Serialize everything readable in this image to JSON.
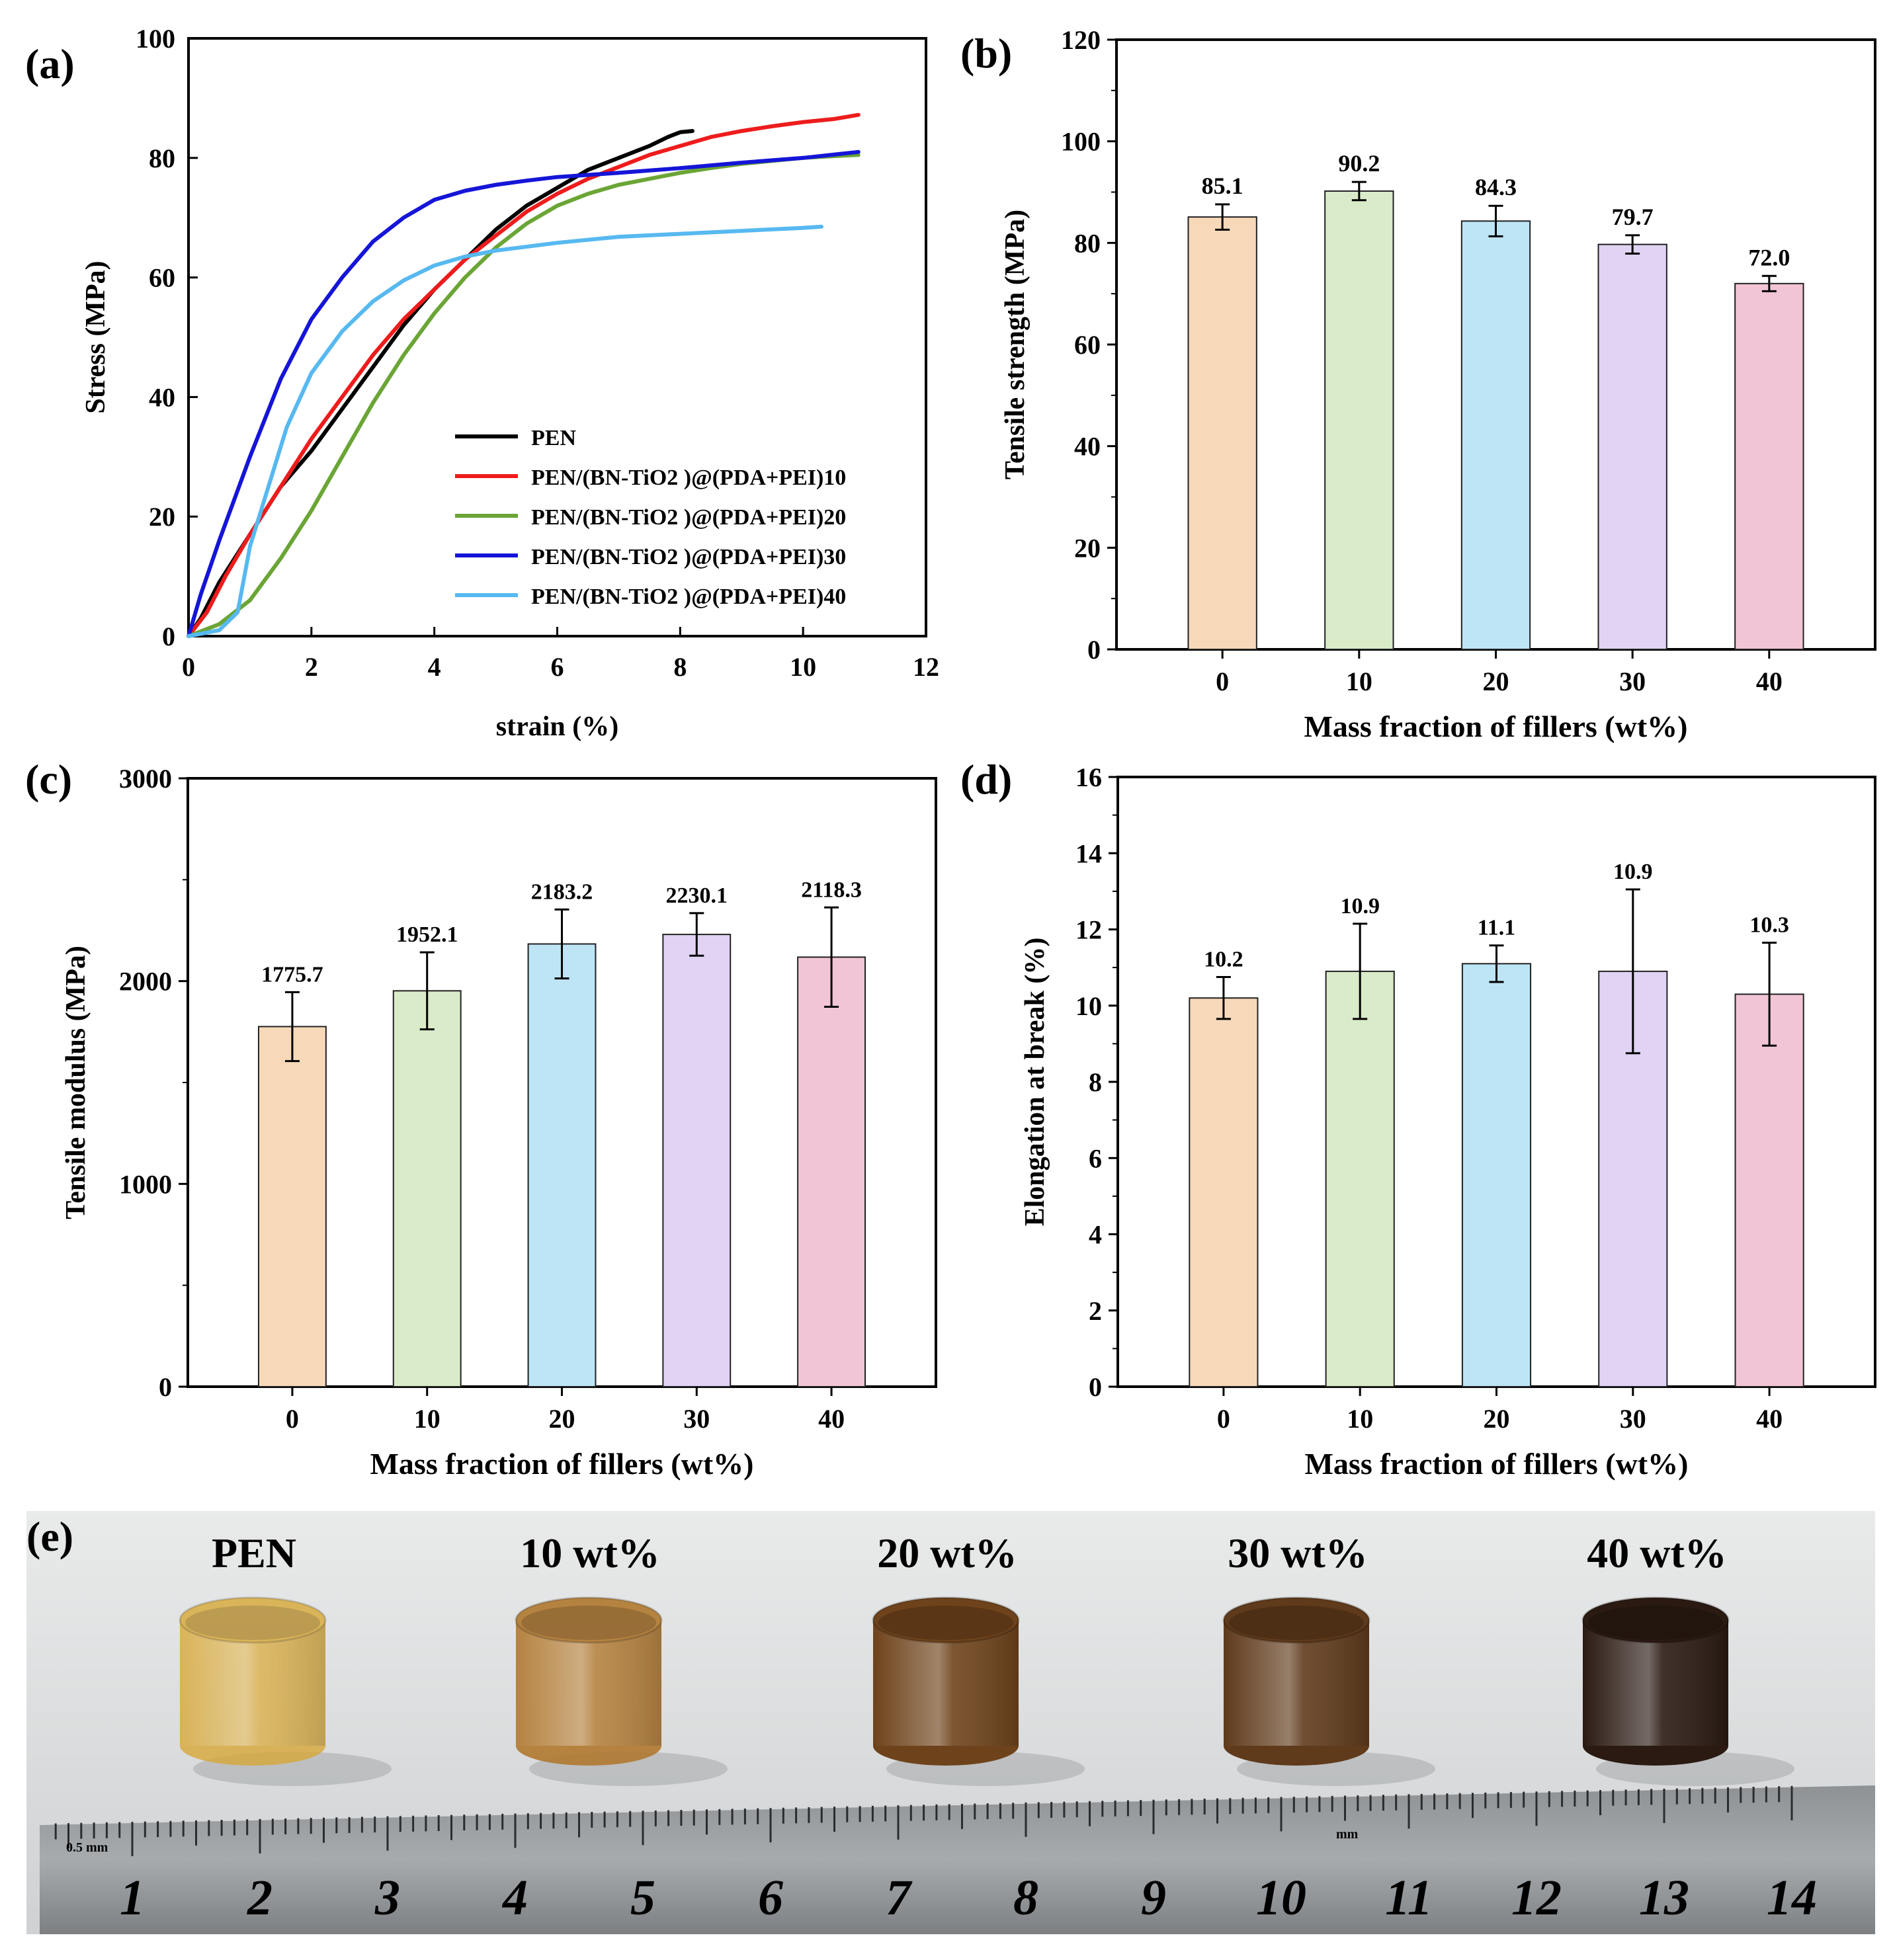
{
  "figure": {
    "panels": [
      "(a)",
      "(b)",
      "(c)",
      "(d)",
      "(e)"
    ],
    "category_axis_label": "Mass fraction of  fillers (wt%)"
  },
  "chart_data": [
    {
      "id": "a",
      "type": "line",
      "panel_label": "(a)",
      "xlabel": "strain (%)",
      "ylabel": "Stress (MPa)",
      "xlim": [
        0,
        12
      ],
      "ylim": [
        0,
        100
      ],
      "xticks": [
        0,
        2,
        4,
        6,
        8,
        10,
        12
      ],
      "yticks": [
        0,
        20,
        40,
        60,
        80,
        100
      ],
      "legend_position": "bottom-right",
      "series": [
        {
          "name": "PEN",
          "color": "#000000",
          "x": [
            0,
            0.2,
            0.5,
            1,
            1.5,
            2,
            2.5,
            3,
            3.5,
            4,
            4.5,
            5,
            5.5,
            6,
            6.5,
            7,
            7.5,
            7.8,
            8.0,
            8.2
          ],
          "y": [
            0,
            3,
            9,
            17,
            25,
            31,
            38,
            45,
            52,
            58,
            63,
            68,
            72,
            75,
            78,
            80,
            82,
            83.5,
            84.3,
            84.5
          ]
        },
        {
          "name": "PEN/(BN-TiO2 )@(PDA+PEI)10",
          "color": "#ee1c1c",
          "x": [
            0,
            0.3,
            0.6,
            1,
            1.5,
            2,
            2.5,
            3,
            3.5,
            4,
            4.5,
            5,
            5.5,
            6,
            6.5,
            7,
            7.5,
            8,
            8.5,
            9,
            9.5,
            10,
            10.5,
            10.9
          ],
          "y": [
            0,
            4,
            10,
            17,
            25,
            33,
            40,
            47,
            53,
            58,
            63,
            67,
            71,
            74,
            76.5,
            78.5,
            80.5,
            82,
            83.5,
            84.5,
            85.3,
            86,
            86.5,
            87.2
          ]
        },
        {
          "name": "PEN/(BN-TiO2 )@(PDA+PEI)20",
          "color": "#6aa535",
          "x": [
            0,
            0.5,
            1,
            1.5,
            2,
            2.5,
            3,
            3.5,
            4,
            4.5,
            5,
            5.5,
            6,
            6.5,
            7,
            7.5,
            8,
            8.5,
            9,
            9.5,
            10,
            10.5,
            10.9
          ],
          "y": [
            0,
            2,
            6,
            13,
            21,
            30,
            39,
            47,
            54,
            60,
            65,
            69,
            72,
            74,
            75.5,
            76.5,
            77.5,
            78.3,
            79,
            79.5,
            80,
            80.3,
            80.5
          ]
        },
        {
          "name": "PEN/(BN-TiO2 )@(PDA+PEI)30",
          "color": "#1515d8",
          "x": [
            0,
            0.2,
            0.5,
            1,
            1.5,
            2,
            2.5,
            3,
            3.5,
            4,
            4.5,
            5,
            5.5,
            6,
            7,
            8,
            9,
            10,
            10.9
          ],
          "y": [
            0,
            7,
            16,
            30,
            43,
            53,
            60,
            66,
            70,
            73,
            74.5,
            75.5,
            76.2,
            76.8,
            77.5,
            78.3,
            79.2,
            80,
            81
          ]
        },
        {
          "name": "PEN/(BN-TiO2 )@(PDA+PEI)40",
          "color": "#57b9f0",
          "x": [
            0,
            0.5,
            0.8,
            1,
            1.3,
            1.6,
            2,
            2.5,
            3,
            3.5,
            4,
            4.5,
            5,
            6,
            7,
            8,
            9,
            10,
            10.3
          ],
          "y": [
            0,
            1,
            4,
            15,
            25,
            35,
            44,
            51,
            56,
            59.5,
            62,
            63.5,
            64.5,
            65.8,
            66.8,
            67.3,
            67.8,
            68.3,
            68.5
          ]
        }
      ]
    },
    {
      "id": "b",
      "type": "bar",
      "panel_label": "(b)",
      "xlabel": "Mass fraction of  fillers (wt%)",
      "ylabel": "Tensile strength (MPa)",
      "categories": [
        "0",
        "10",
        "20",
        "30",
        "40"
      ],
      "values": [
        85.1,
        90.2,
        84.3,
        79.7,
        72.0
      ],
      "value_labels": [
        "85.1",
        "90.2",
        "84.3",
        "79.7",
        "72.0"
      ],
      "errors": [
        2.5,
        1.8,
        3.0,
        1.8,
        1.5
      ],
      "ylim": [
        0,
        120
      ],
      "yticks": [
        0,
        20,
        40,
        60,
        80,
        100,
        120
      ],
      "bar_colors": [
        "#f7d9b9",
        "#d9ebc9",
        "#bde5f5",
        "#e1d3f3",
        "#f1c5d6"
      ]
    },
    {
      "id": "c",
      "type": "bar",
      "panel_label": "(c)",
      "xlabel": "Mass fraction of  fillers (wt%)",
      "ylabel": "Tensile modulus (MPa)",
      "categories": [
        "0",
        "10",
        "20",
        "30",
        "40"
      ],
      "values": [
        1775.7,
        1952.1,
        2183.2,
        2230.1,
        2118.3
      ],
      "value_labels": [
        "1775.7",
        "1952.1",
        "2183.2",
        "2230.1",
        "2118.3"
      ],
      "errors": [
        170,
        190,
        170,
        105,
        245
      ],
      "ylim": [
        0,
        3000
      ],
      "yticks": [
        0,
        1000,
        2000,
        3000
      ],
      "bar_colors": [
        "#f7d9b9",
        "#d9ebc9",
        "#bde5f5",
        "#e1d3f3",
        "#f1c5d6"
      ]
    },
    {
      "id": "d",
      "type": "bar",
      "panel_label": "(d)",
      "xlabel": "Mass fraction of  fillers (wt%)",
      "ylabel": "Elongation at break (%)",
      "categories": [
        "0",
        "10",
        "20",
        "30",
        "40"
      ],
      "values": [
        10.2,
        10.9,
        11.1,
        10.9,
        10.3
      ],
      "value_labels": [
        "10.2",
        "10.9",
        "11.1",
        "10.9",
        "10.3"
      ],
      "errors": [
        0.55,
        1.25,
        0.48,
        2.15,
        1.35
      ],
      "ylim": [
        0,
        16
      ],
      "yticks": [
        0,
        2,
        4,
        6,
        8,
        10,
        12,
        14,
        16
      ],
      "bar_colors": [
        "#f7d9b9",
        "#d9ebc9",
        "#bde5f5",
        "#e1d3f3",
        "#f1c5d6"
      ]
    }
  ],
  "photo": {
    "panel_label": "(e)",
    "samples": [
      {
        "label": "PEN",
        "color": "#d8a733",
        "opacity": 0.78
      },
      {
        "label": "10 wt%",
        "color": "#b27b33",
        "opacity": 0.92
      },
      {
        "label": "20 wt%",
        "color": "#6e431b",
        "opacity": 1
      },
      {
        "label": "30 wt%",
        "color": "#5f3a1b",
        "opacity": 1
      },
      {
        "label": "40 wt%",
        "color": "#2a1a12",
        "opacity": 1
      }
    ],
    "ruler": {
      "numbers": [
        "1",
        "2",
        "3",
        "4",
        "5",
        "6",
        "7",
        "8",
        "9",
        "10",
        "11",
        "12",
        "13",
        "14"
      ],
      "highlight": "10",
      "unit_left": "0.5 mm",
      "unit_right": "mm"
    }
  }
}
